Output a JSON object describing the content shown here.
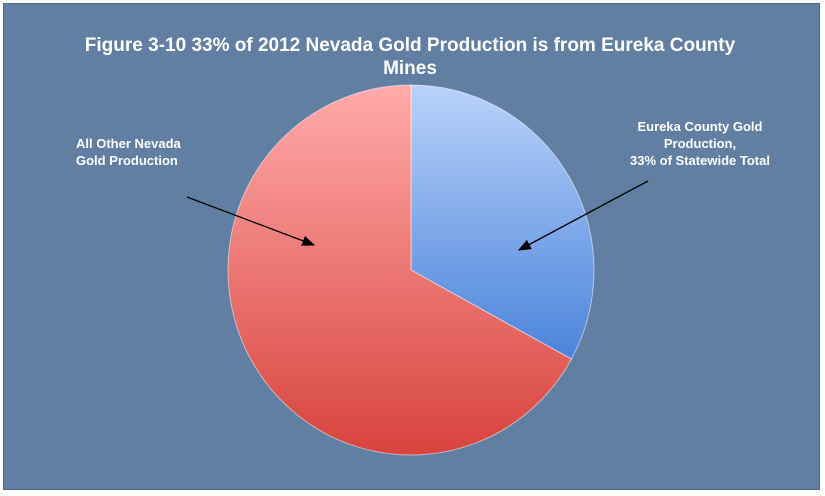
{
  "chart_data": {
    "type": "pie",
    "title": "Figure 3-10 33% of 2012 Nevada Gold Production is from Eureka County Mines",
    "slices": [
      {
        "label_lines": [
          "Eureka County Gold",
          "Production,",
          "33% of Statewide Total"
        ],
        "value": 33,
        "color": "#5b8fe0"
      },
      {
        "label_lines": [
          "All Other Nevada",
          "Gold Production"
        ],
        "value": 67,
        "color": "#e05a52"
      }
    ],
    "legend": "none"
  }
}
